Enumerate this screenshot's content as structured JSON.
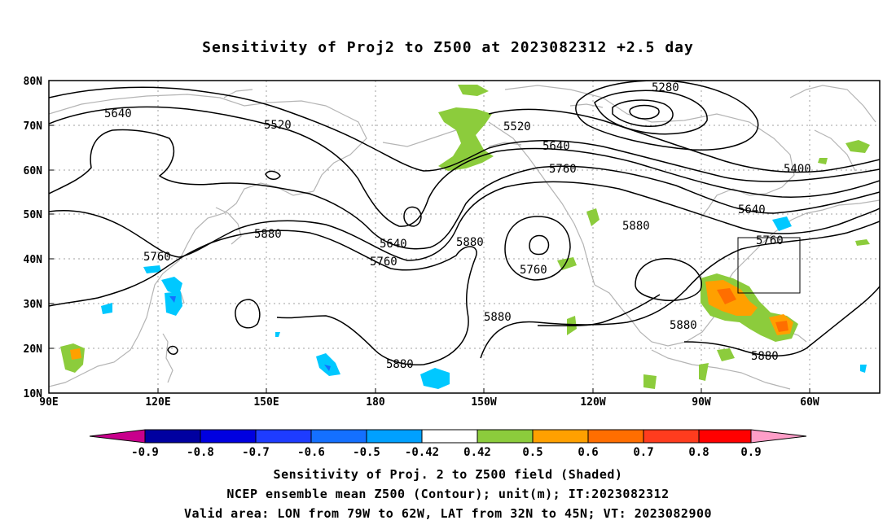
{
  "title": "Sensitivity of Proj2 to Z500 at 2023082312 +2.5 day",
  "lat_labels": [
    "80N",
    "70N",
    "60N",
    "50N",
    "40N",
    "30N",
    "20N",
    "10N"
  ],
  "lon_labels": [
    "90E",
    "120E",
    "150E",
    "180",
    "150W",
    "120W",
    "90W",
    "60W"
  ],
  "contour_labels": [
    "5280",
    "5640",
    "5520",
    "5520",
    "5640",
    "5400",
    "5760",
    "5640",
    "5880",
    "5880",
    "5640",
    "5880",
    "5760",
    "5760",
    "5760",
    "5760",
    "5880",
    "5880",
    "5880",
    "5880"
  ],
  "colorbar": {
    "labels": [
      "-0.9",
      "-0.8",
      "-0.7",
      "-0.6",
      "-0.5",
      "-0.42",
      "0.42",
      "0.5",
      "0.6",
      "0.7",
      "0.8",
      "0.9"
    ],
    "colors": [
      "#0000a0",
      "#0000e0",
      "#1e3cff",
      "#1470ff",
      "#00a0ff",
      "#ffffff",
      "#8ccc3c",
      "#ffa000",
      "#ff6e00",
      "#ff3c1e",
      "#ff0000"
    ],
    "low_cap_color": "#c8008c",
    "high_cap_color": "#ff9ec8"
  },
  "footer": {
    "line1": "Sensitivity of Proj. 2 to Z500 field (Shaded)",
    "line2": "NCEP ensemble mean Z500 (Contour); unit(m); IT:2023082312",
    "line3": "Valid area: LON from 79W to 62W, LAT from 32N to 45N; VT: 2023082900"
  },
  "colors": {
    "contour": "#000000",
    "coastline": "#b4b4b4",
    "grid": "#a0a0a0",
    "positive_shade": "#8ccc3c",
    "orange_shade": "#ffa000",
    "negative_shade": "#00c8ff",
    "negative_dark": "#1470ff"
  }
}
